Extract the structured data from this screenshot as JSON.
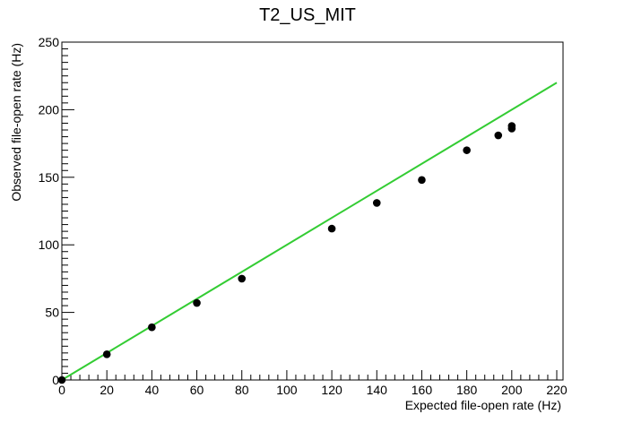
{
  "chart_data": {
    "type": "scatter",
    "title": "T2_US_MIT",
    "xlabel": "Expected file-open rate (Hz)",
    "ylabel": "Observed file-open rate (Hz)",
    "xlim": [
      0,
      220
    ],
    "ylim": [
      0,
      250
    ],
    "x_ticks": [
      "0",
      "20",
      "40",
      "60",
      "80",
      "100",
      "120",
      "140",
      "160",
      "180",
      "200",
      "220"
    ],
    "y_ticks": [
      "0",
      "50",
      "100",
      "150",
      "200",
      "250"
    ],
    "grid": false,
    "series": [
      {
        "points": [
          {
            "x": 0,
            "y": 0
          },
          {
            "x": 20,
            "y": 19
          },
          {
            "x": 40,
            "y": 39
          },
          {
            "x": 60,
            "y": 57
          },
          {
            "x": 80,
            "y": 75
          },
          {
            "x": 120,
            "y": 112
          },
          {
            "x": 140,
            "y": 131
          },
          {
            "x": 160,
            "y": 148
          },
          {
            "x": 180,
            "y": 170
          },
          {
            "x": 194,
            "y": 181
          },
          {
            "x": 200,
            "y": 186
          },
          {
            "x": 200,
            "y": 188
          }
        ],
        "color": "#000000"
      }
    ],
    "reference_line": {
      "from": [
        0,
        0
      ],
      "to": [
        220,
        220
      ],
      "color": "#33cc33"
    }
  }
}
